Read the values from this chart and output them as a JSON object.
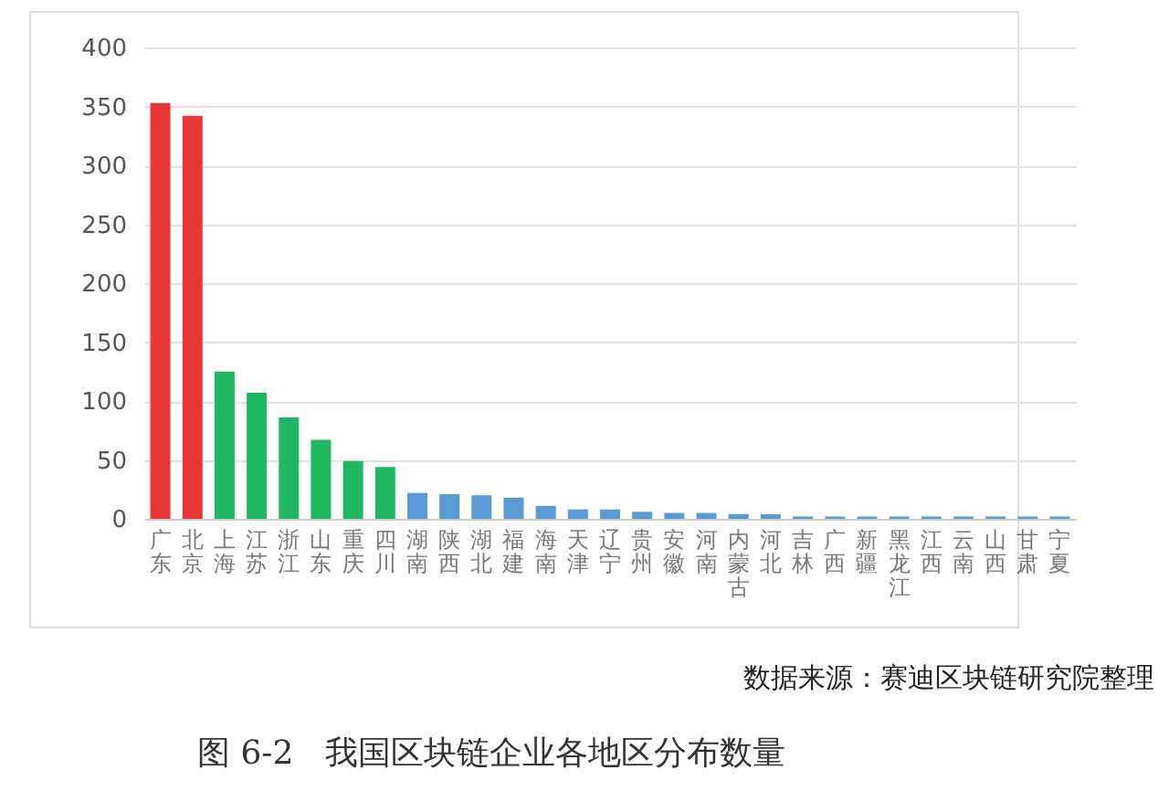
{
  "chart_data": {
    "type": "bar",
    "title": "图 6-2   我国区块链企业各地区分布数量",
    "annotations": [
      "数据来源：赛迪区块链研究院整理"
    ],
    "categories": [
      "广东",
      "北京",
      "上海",
      "江苏",
      "浙江",
      "山东",
      "重庆",
      "四川",
      "湖南",
      "陕西",
      "湖北",
      "福建",
      "海南",
      "天津",
      "辽宁",
      "贵州",
      "安徽",
      "河南",
      "内蒙古",
      "河北",
      "吉林",
      "广西",
      "新疆",
      "黑龙江",
      "江西",
      "云南",
      "山西",
      "甘肃",
      "宁夏"
    ],
    "values": [
      353,
      342,
      125,
      107,
      86,
      67,
      49,
      44,
      22,
      21,
      20,
      18,
      11,
      8,
      8,
      6,
      5,
      5,
      4,
      4,
      2,
      2,
      2,
      2,
      2,
      2,
      2,
      2,
      2
    ],
    "colors": [
      "#e83535",
      "#e83535",
      "#1fb860",
      "#1fb860",
      "#1fb860",
      "#1fb860",
      "#1fb860",
      "#1fb860",
      "#5b9bd5",
      "#5b9bd5",
      "#5b9bd5",
      "#5b9bd5",
      "#5b9bd5",
      "#5b9bd5",
      "#5b9bd5",
      "#5b9bd5",
      "#5b9bd5",
      "#5b9bd5",
      "#5b9bd5",
      "#5b9bd5",
      "#5b9bd5",
      "#5b9bd5",
      "#5b9bd5",
      "#5b9bd5",
      "#5b9bd5",
      "#5b9bd5",
      "#5b9bd5",
      "#5b9bd5",
      "#5b9bd5"
    ],
    "ylim": [
      0,
      400
    ],
    "yticks": [
      0,
      50,
      100,
      150,
      200,
      250,
      300,
      350,
      400
    ],
    "grid": "y"
  }
}
